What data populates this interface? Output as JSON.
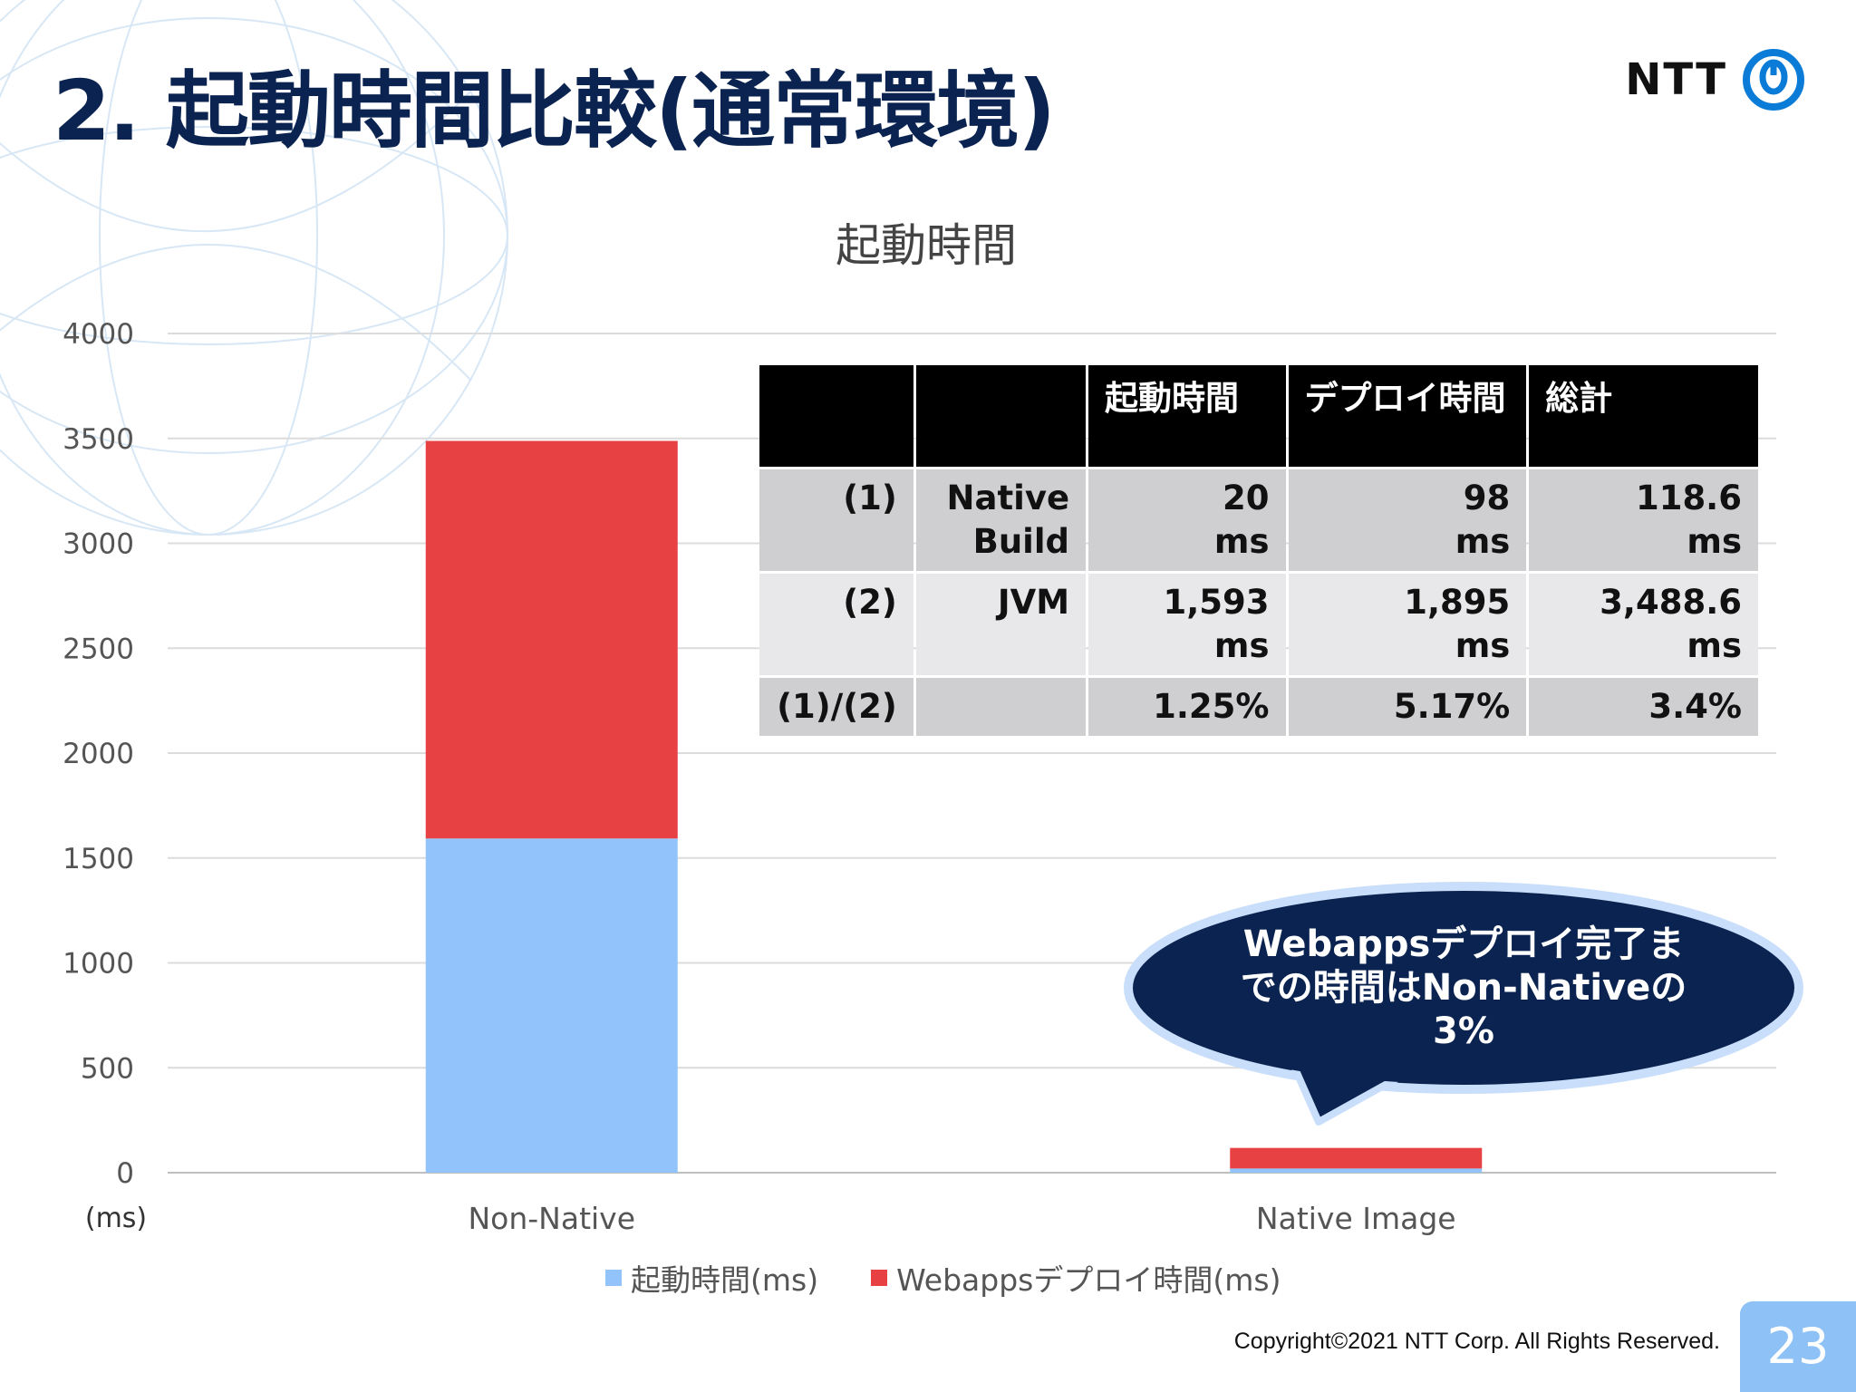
{
  "slide": {
    "title": "2. 起動時間比較(通常環境)",
    "logo_text": "NTT",
    "copyright": "Copyright©2021  NTT Corp. All Rights Reserved.",
    "page_number": "23"
  },
  "chart_data": {
    "type": "bar",
    "stacked": true,
    "title": "起動時間",
    "unit_label": "(ms)",
    "categories": [
      "Non-Native",
      "Native Image"
    ],
    "series": [
      {
        "name": "起動時間(ms)",
        "color": "#92c3fb",
        "values": [
          1593,
          20
        ]
      },
      {
        "name": "Webappsデプロイ時間(ms)",
        "color": "#e84143",
        "values": [
          1895,
          98
        ]
      }
    ],
    "ylim": [
      0,
      4000
    ],
    "yticks": [
      0,
      500,
      1000,
      1500,
      2000,
      2500,
      3000,
      3500,
      4000
    ],
    "grid": true,
    "legend_position": "bottom"
  },
  "table": {
    "headers": [
      "",
      "",
      "起動時間",
      "デプロイ時間",
      "総計"
    ],
    "rows": [
      {
        "id": "(1)",
        "name_1": "Native",
        "name_2": "Build",
        "c1": "20",
        "c1u": "ms",
        "c2": "98",
        "c2u": "ms",
        "c3": "118.6",
        "c3u": "ms"
      },
      {
        "id": "(2)",
        "name_1": "JVM",
        "name_2": "",
        "c1": "1,593",
        "c1u": "ms",
        "c2": "1,895",
        "c2u": "ms",
        "c3": "3,488.6",
        "c3u": "ms"
      },
      {
        "id": "(1)/(2)",
        "name_1": "",
        "name_2": "",
        "c1": "1.25%",
        "c1u": "",
        "c2": "5.17%",
        "c2u": "",
        "c3": "3.4%",
        "c3u": ""
      }
    ]
  },
  "callout": {
    "line1": "Webappsデプロイ完了ま",
    "line2": "での時間はNon-Nativeの",
    "line3": "3%"
  },
  "colors": {
    "title": "#0b2350",
    "callout_fill": "#0b2350",
    "callout_border": "#c9defa",
    "page_badge": "#8ec1f5"
  }
}
